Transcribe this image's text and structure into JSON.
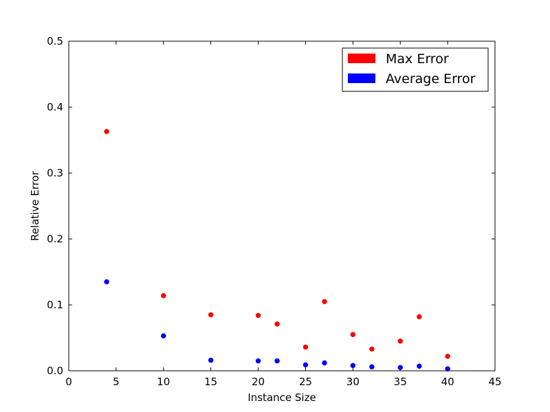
{
  "chart_data": {
    "type": "scatter",
    "title": "",
    "xlabel": "Instance Size",
    "ylabel": "Relative Error",
    "xlim": [
      0,
      45
    ],
    "ylim": [
      0,
      0.5
    ],
    "xticks": [
      "0",
      "5",
      "10",
      "15",
      "20",
      "25",
      "30",
      "35",
      "40",
      "45"
    ],
    "yticks": [
      "0.0",
      "0.1",
      "0.2",
      "0.3",
      "0.4",
      "0.5"
    ],
    "grid": false,
    "legend_position": "top-right",
    "x": [
      4,
      10,
      15,
      20,
      22,
      25,
      27,
      30,
      32,
      35,
      37,
      40
    ],
    "series": [
      {
        "name": "Max Error",
        "color": "#ff0000",
        "values": [
          0.363,
          0.114,
          0.085,
          0.084,
          0.071,
          0.036,
          0.105,
          0.055,
          0.033,
          0.045,
          0.082,
          0.022
        ]
      },
      {
        "name": "Average Error",
        "color": "#0000ff",
        "values": [
          0.135,
          0.053,
          0.016,
          0.015,
          0.015,
          0.009,
          0.012,
          0.008,
          0.006,
          0.005,
          0.007,
          0.003
        ]
      }
    ]
  }
}
